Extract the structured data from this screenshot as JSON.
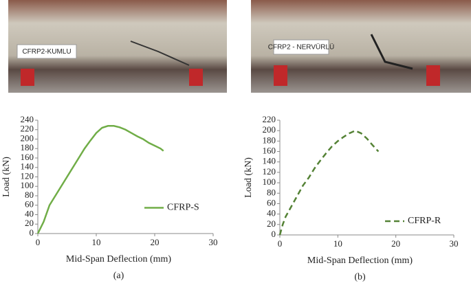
{
  "photos": [
    {
      "label": "CFRP2-KUMLU"
    },
    {
      "label": "CFRP2 - NERVÜRLÜ"
    }
  ],
  "chart_data": [
    {
      "type": "line",
      "caption": "(a)",
      "xlabel": "Mid-Span Deflection (mm)",
      "ylabel": "Load (kN)",
      "x": [
        0,
        1,
        2,
        3,
        4,
        5,
        6,
        7,
        8,
        9,
        10,
        11,
        12,
        13,
        14,
        15,
        16,
        17,
        18,
        19,
        20,
        21,
        21.5
      ],
      "series": [
        {
          "name": "CFRP-S",
          "color": "#70ad47",
          "dashed": false,
          "values": [
            0,
            25,
            60,
            80,
            100,
            120,
            140,
            160,
            180,
            197,
            213,
            224,
            228,
            228,
            225,
            220,
            213,
            206,
            200,
            192,
            186,
            180,
            175
          ]
        }
      ],
      "xlim": [
        0,
        30
      ],
      "xticks": [
        0,
        10,
        20,
        30
      ],
      "ylim": [
        0,
        240
      ],
      "yticks": [
        0,
        20,
        40,
        60,
        80,
        100,
        120,
        140,
        160,
        180,
        200,
        220,
        240
      ],
      "legend": "right"
    },
    {
      "type": "line",
      "caption": "(b)",
      "xlabel": "Mid-Span Deflection (mm)",
      "ylabel": "Load (kN)",
      "x": [
        0,
        0.5,
        1,
        2,
        3,
        4,
        5,
        6,
        7,
        8,
        9,
        10,
        11,
        12,
        13,
        14,
        15,
        16,
        17
      ],
      "series": [
        {
          "name": "CFRP-R",
          "color": "#548235",
          "dashed": true,
          "values": [
            0,
            20,
            35,
            55,
            75,
            95,
            110,
            128,
            143,
            157,
            170,
            180,
            188,
            195,
            200,
            195,
            185,
            172,
            160
          ]
        }
      ],
      "xlim": [
        0,
        30
      ],
      "xticks": [
        0,
        10,
        20,
        30
      ],
      "ylim": [
        0,
        220
      ],
      "yticks": [
        0,
        20,
        40,
        60,
        80,
        100,
        120,
        140,
        160,
        180,
        200,
        220
      ],
      "legend": "lower right"
    }
  ]
}
